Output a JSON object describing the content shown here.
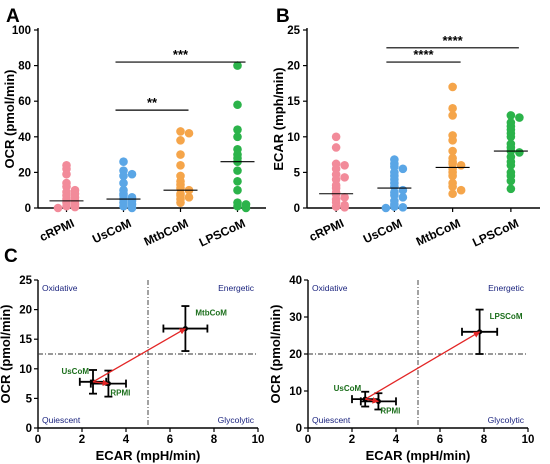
{
  "colors": {
    "cRPMI": "#f28b9a",
    "UsCoM": "#5aa6e6",
    "MtbCoM": "#f5a54a",
    "LPSCoM": "#2bb34a",
    "arrow": "#e32626",
    "quadrant_text": "#1a237e",
    "point_label": "#1b6e1b"
  },
  "chart_data": [
    {
      "panel": "A",
      "type": "scatter",
      "ylabel": "OCR (pmol/min)",
      "ylim": [
        0,
        100
      ],
      "yticks": [
        "0",
        "20",
        "40",
        "60",
        "80",
        "100"
      ],
      "categories": [
        "cRPMI",
        "UsCoM",
        "MtbCoM",
        "LPSCoM"
      ],
      "series": [
        {
          "name": "cRPMI",
          "values": [
            24,
            22,
            19,
            14,
            12,
            10,
            9,
            8,
            7,
            6,
            5,
            4,
            3,
            2,
            1,
            0.5,
            0
          ],
          "median": 4
        },
        {
          "name": "UsCoM",
          "values": [
            26,
            21,
            19,
            18,
            14,
            10,
            8,
            7,
            6,
            5,
            4,
            3,
            2,
            1,
            0
          ],
          "median": 5
        },
        {
          "name": "MtbCoM",
          "values": [
            43,
            42,
            38,
            30,
            24,
            18,
            15,
            13,
            11,
            10,
            8,
            7,
            6,
            5,
            3
          ],
          "median": 10
        },
        {
          "name": "LPSCoM",
          "values": [
            80,
            58,
            44,
            40,
            33,
            30,
            28,
            26,
            21,
            15,
            10,
            3,
            2,
            1,
            0
          ],
          "median": 26
        }
      ],
      "significance": [
        {
          "label": "**",
          "from": "UsCoM",
          "to": "MtbCoM",
          "y": 55
        },
        {
          "label": "***",
          "from": "UsCoM",
          "to": "LPSCoM",
          "y": 82
        }
      ]
    },
    {
      "panel": "B",
      "type": "scatter",
      "ylabel": "ECAR (mph/min)",
      "ylim": [
        0,
        25
      ],
      "yticks": [
        "0",
        "5",
        "10",
        "15",
        "20",
        "25"
      ],
      "categories": [
        "cRPMI",
        "UsCoM",
        "MtbCoM",
        "LPSCoM"
      ],
      "series": [
        {
          "name": "cRPMI",
          "values": [
            10,
            8.5,
            6.2,
            6,
            5.5,
            4.7,
            4.3,
            4,
            3.2,
            2.8,
            2.2,
            1.9,
            1.5,
            1.2,
            0.8,
            0.4,
            0.2,
            0.1
          ],
          "median": 2
        },
        {
          "name": "UsCoM",
          "values": [
            6.8,
            6.2,
            5.8,
            5.5,
            5,
            4.5,
            4,
            3.5,
            3,
            2.5,
            2.2,
            1.8,
            1.5,
            1,
            0.5,
            0.2,
            0.1,
            0
          ],
          "median": 2.8
        },
        {
          "name": "MtbCoM",
          "values": [
            17,
            14,
            13,
            10.2,
            9.5,
            8,
            7,
            6.5,
            6.2,
            6,
            5.5,
            5,
            4.5,
            3.5,
            3,
            2.5,
            2
          ],
          "median": 5.7
        },
        {
          "name": "LPSCoM",
          "values": [
            13,
            12.7,
            12,
            11.5,
            11,
            10.5,
            10,
            9,
            8.5,
            8,
            7.8,
            7.2,
            6.5,
            6,
            5,
            4.5,
            3.8,
            2.7
          ],
          "median": 8
        }
      ],
      "significance": [
        {
          "label": "****",
          "from": "UsCoM",
          "to": "MtbCoM",
          "y": 20.5
        },
        {
          "label": "****",
          "from": "UsCoM",
          "to": "LPSCoM",
          "y": 22.5
        }
      ]
    },
    {
      "panel": "C-left",
      "type": "scatter",
      "xlabel": "ECAR (mpH/min)",
      "ylabel": "OCR (pmol/min)",
      "xlim": [
        0,
        10
      ],
      "ylim": [
        0,
        25
      ],
      "xticks": [
        "0",
        "2",
        "4",
        "6",
        "8",
        "10"
      ],
      "yticks": [
        "0",
        "5",
        "10",
        "15",
        "20",
        "25"
      ],
      "quadrants": {
        "top_left": "Oxidative",
        "top_right": "Energetic",
        "bottom_left": "Quiescent",
        "bottom_right": "Glycolytic"
      },
      "divider": {
        "x": 5,
        "y": 12.5
      },
      "points": [
        {
          "name": "UsCoM",
          "label": "UsCoM",
          "x": 2.5,
          "y": 7.8,
          "xerr": 0.6,
          "yerr": 2.0
        },
        {
          "name": "RPMI",
          "label": "RPMI",
          "x": 3.2,
          "y": 7.5,
          "xerr": 0.8,
          "yerr": 2.2
        },
        {
          "name": "MtbCoM",
          "label": "MtbCoM",
          "x": 6.7,
          "y": 16.8,
          "xerr": 1.0,
          "yerr": 3.8
        }
      ],
      "arrows": [
        {
          "from": "UsCoM",
          "to": "RPMI"
        },
        {
          "from": "UsCoM",
          "to": "MtbCoM"
        }
      ]
    },
    {
      "panel": "C-right",
      "type": "scatter",
      "xlabel": "ECAR (mpH/min)",
      "ylabel": "OCR (pmol/min)",
      "xlim": [
        0,
        10
      ],
      "ylim": [
        0,
        40
      ],
      "xticks": [
        "0",
        "2",
        "4",
        "6",
        "8",
        "10"
      ],
      "yticks": [
        "0",
        "10",
        "20",
        "30",
        "40"
      ],
      "quadrants": {
        "top_left": "Oxidative",
        "top_right": "Energetic",
        "bottom_left": "Quiescent",
        "bottom_right": "Glycolytic"
      },
      "divider": {
        "x": 5,
        "y": 20
      },
      "points": [
        {
          "name": "UsCoM",
          "label": "UsCoM",
          "x": 2.6,
          "y": 7.8,
          "xerr": 0.6,
          "yerr": 2.0
        },
        {
          "name": "RPMI",
          "label": "RPMI",
          "x": 3.2,
          "y": 7.2,
          "xerr": 0.8,
          "yerr": 2.2
        },
        {
          "name": "LPSCoM",
          "label": "LPSCoM",
          "x": 7.8,
          "y": 26,
          "xerr": 0.8,
          "yerr": 6
        }
      ],
      "arrows": [
        {
          "from": "UsCoM",
          "to": "RPMI"
        },
        {
          "from": "UsCoM",
          "to": "LPSCoM"
        }
      ]
    }
  ]
}
